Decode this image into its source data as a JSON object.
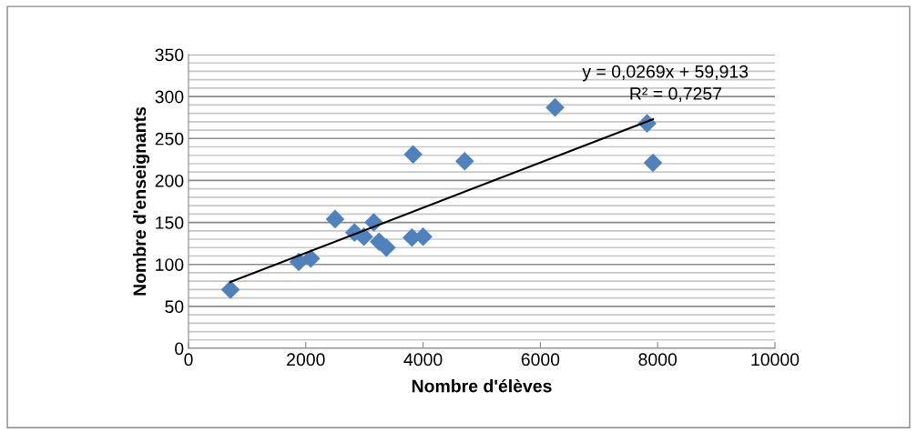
{
  "chart_data": {
    "type": "scatter",
    "xlabel": "Nombre d'élèves",
    "ylabel": "Nombre d'enseignants",
    "xlim": [
      0,
      10000
    ],
    "xticks": [
      0,
      2000,
      4000,
      6000,
      8000,
      10000
    ],
    "ylim": [
      0,
      350
    ],
    "yticks": [
      0,
      {
        "value": 10,
        "label": null
      },
      {
        "value": 20,
        "label": null
      },
      {
        "value": 30,
        "label": null
      },
      {
        "value": 40,
        "label": null
      },
      50,
      {
        "value": 60,
        "label": null
      },
      {
        "value": 70,
        "label": null
      },
      {
        "value": 80,
        "label": null
      },
      {
        "value": 90,
        "label": null
      },
      100,
      {
        "value": 110,
        "label": null
      },
      {
        "value": 120,
        "label": null
      },
      {
        "value": 130,
        "label": null
      },
      {
        "value": 140,
        "label": null
      },
      150,
      {
        "value": 160,
        "label": null
      },
      {
        "value": 170,
        "label": null
      },
      {
        "value": 180,
        "label": null
      },
      {
        "value": 190,
        "label": null
      },
      200,
      {
        "value": 210,
        "label": null
      },
      {
        "value": 220,
        "label": null
      },
      {
        "value": 230,
        "label": null
      },
      {
        "value": 240,
        "label": null
      },
      250,
      {
        "value": 260,
        "label": null
      },
      {
        "value": 270,
        "label": null
      },
      {
        "value": 280,
        "label": null
      },
      {
        "value": 290,
        "label": null
      },
      300,
      {
        "value": 310,
        "label": null
      },
      {
        "value": 320,
        "label": null
      },
      {
        "value": 330,
        "label": null
      },
      {
        "value": 340,
        "label": null
      },
      350
    ],
    "grid": "y",
    "marker": "diamond",
    "series": [
      {
        "color": "#4f81bd",
        "x": [
          715,
          1880,
          2085,
          2500,
          2830,
          2990,
          3160,
          3250,
          3375,
          3810,
          3830,
          4000,
          4710,
          6250,
          7820,
          7920
        ],
        "values": [
          70,
          103,
          107,
          154,
          138,
          133,
          150,
          127,
          120,
          132,
          231,
          133,
          223,
          287,
          268,
          221
        ]
      },
      {
        "type": "line",
        "color": "#000000",
        "marker": "none",
        "x": [
          715,
          7920
        ],
        "values": [
          79,
          273
        ]
      }
    ],
    "annotations": [
      "y = 0,0269x + 59,913",
      "R² = 0,7257"
    ]
  }
}
